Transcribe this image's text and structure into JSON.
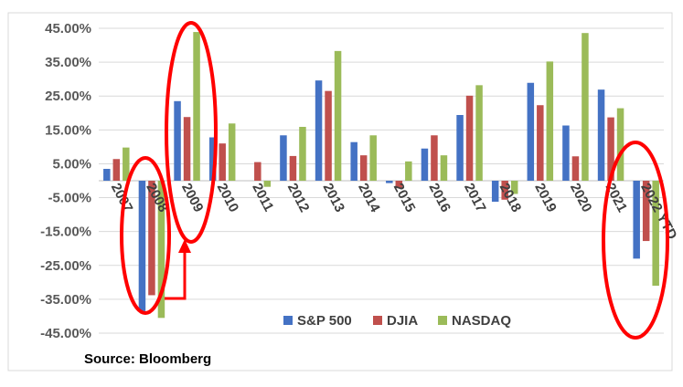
{
  "chart_data": {
    "type": "bar",
    "categories": [
      "2007",
      "2008",
      "2009",
      "2010",
      "2011",
      "2012",
      "2013",
      "2014",
      "2015",
      "2016",
      "2017",
      "2018",
      "2019",
      "2020",
      "2021",
      "2022 YTD"
    ],
    "series": [
      {
        "name": "S&P 500",
        "color": "#4472C4",
        "values": [
          3.5,
          -38.5,
          23.5,
          12.8,
          0.0,
          13.4,
          29.6,
          11.4,
          -0.7,
          9.5,
          19.4,
          -6.2,
          28.9,
          16.3,
          26.9,
          -23.0
        ]
      },
      {
        "name": "DJIA",
        "color": "#C0504D",
        "values": [
          6.4,
          -33.8,
          18.8,
          11.0,
          5.5,
          7.3,
          26.5,
          7.5,
          -2.2,
          13.4,
          25.1,
          -5.6,
          22.3,
          7.2,
          18.7,
          -17.8
        ]
      },
      {
        "name": "NASDAQ",
        "color": "#9BBB59",
        "values": [
          9.8,
          -40.5,
          43.9,
          16.9,
          -1.8,
          15.9,
          38.3,
          13.4,
          5.7,
          7.5,
          28.2,
          -3.9,
          35.2,
          43.6,
          21.4,
          -31.0
        ]
      }
    ],
    "yticks": [
      "45.00%",
      "35.00%",
      "25.00%",
      "15.00%",
      "5.00%",
      "-5.00%",
      "-15.00%",
      "-25.00%",
      "-35.00%",
      "-45.00%"
    ],
    "ylim": [
      -45,
      45
    ],
    "legend_position": "bottom-right",
    "grid": true,
    "annotations": {
      "highlight_color": "#FF0000",
      "ellipses_around": [
        "2008",
        "2009",
        "2022 YTD"
      ],
      "arrow": "from 2008 trough up to 2009 bars"
    }
  },
  "source": "Source: Bloomberg"
}
